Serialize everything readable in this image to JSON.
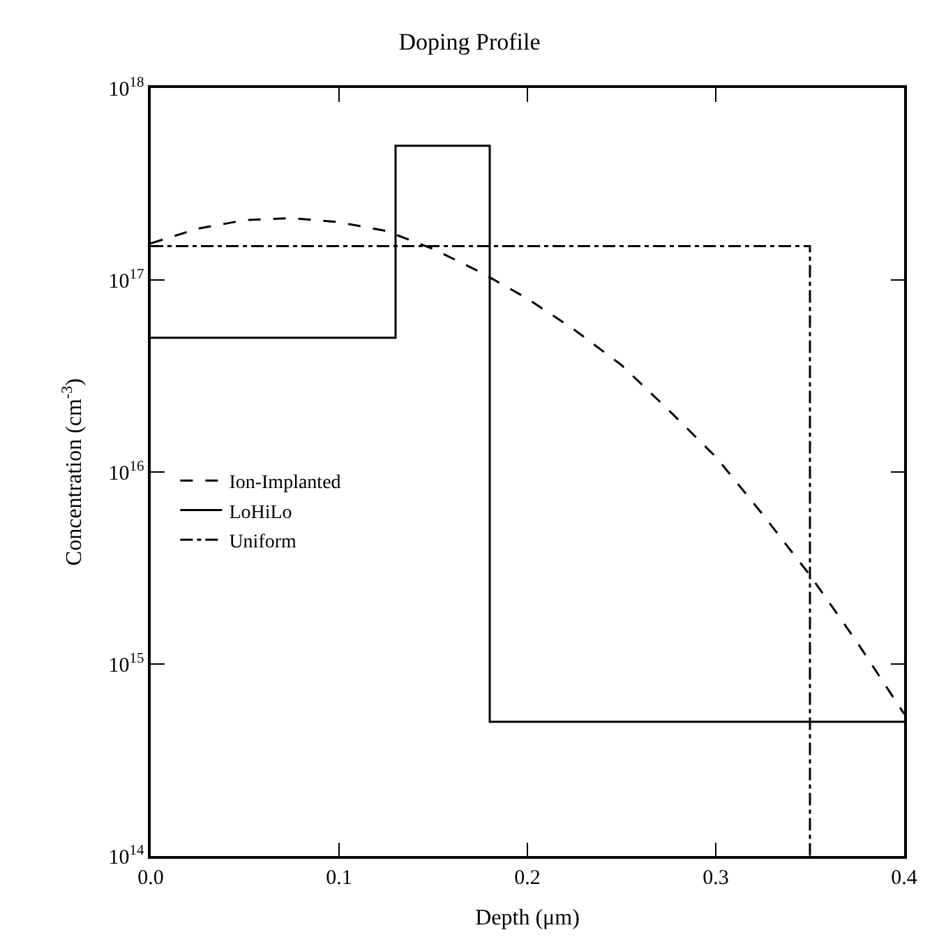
{
  "chart_data": {
    "type": "line",
    "title": "Doping Profile",
    "xlabel": "Depth (μm)",
    "ylabel": "Concentration (cm$^{-3}$)",
    "log": "y",
    "legend": "left",
    "marker": "none",
    "xlim": [
      0,
      0.4
    ],
    "xticks": [
      {
        "value": 0,
        "label": "0.0"
      },
      0.1,
      0.2,
      0.3,
      0.4
    ],
    "ylim": [
      100000000000000.0,
      1e+18
    ],
    "yticks": [
      {
        "value": 100000000000000.0,
        "label": "10$^{14}$"
      },
      {
        "value": 1000000000000000.0,
        "label": "10$^{15}$"
      },
      {
        "value": 1e+16,
        "label": "10$^{16}$"
      },
      {
        "value": 1e+17,
        "label": "10$^{17}$"
      },
      {
        "value": 1e+18,
        "label": "10$^{18}$"
      }
    ],
    "series": [
      {
        "name": "Ion-Implanted",
        "color": "#000000",
        "line_style": "dashed",
        "x": [
          0,
          0.025,
          0.05,
          0.075,
          0.1,
          0.125,
          0.15,
          0.175,
          0.2,
          0.225,
          0.25,
          0.275,
          0.3,
          0.325,
          0.35,
          0.375,
          0.4
        ],
        "values": [
          1.55e+17,
          1.85e+17,
          2.05e+17,
          2.1e+17,
          2e+17,
          1.8e+17,
          1.45e+17,
          1.1e+17,
          8e+16,
          5.5e+16,
          3.6e+16,
          2.1e+16,
          1.2e+16,
          6000000000000000.0,
          2900000000000000.0,
          1300000000000000.0,
          550000000000000.0
        ]
      },
      {
        "name": "LoHiLo",
        "color": "#000000",
        "line_style": "solid",
        "x": [
          0,
          0.13,
          0.13,
          0.18,
          0.18,
          0.4
        ],
        "values": [
          5e+16,
          5e+16,
          5e+17,
          5e+17,
          500000000000000.0,
          500000000000000.0
        ]
      },
      {
        "name": "Uniform",
        "color": "#000000",
        "line_style": "dashdot",
        "x": [
          0,
          0.35,
          0.35
        ],
        "values": [
          1.5e+17,
          1.5e+17,
          100000000000000.0
        ]
      }
    ]
  }
}
